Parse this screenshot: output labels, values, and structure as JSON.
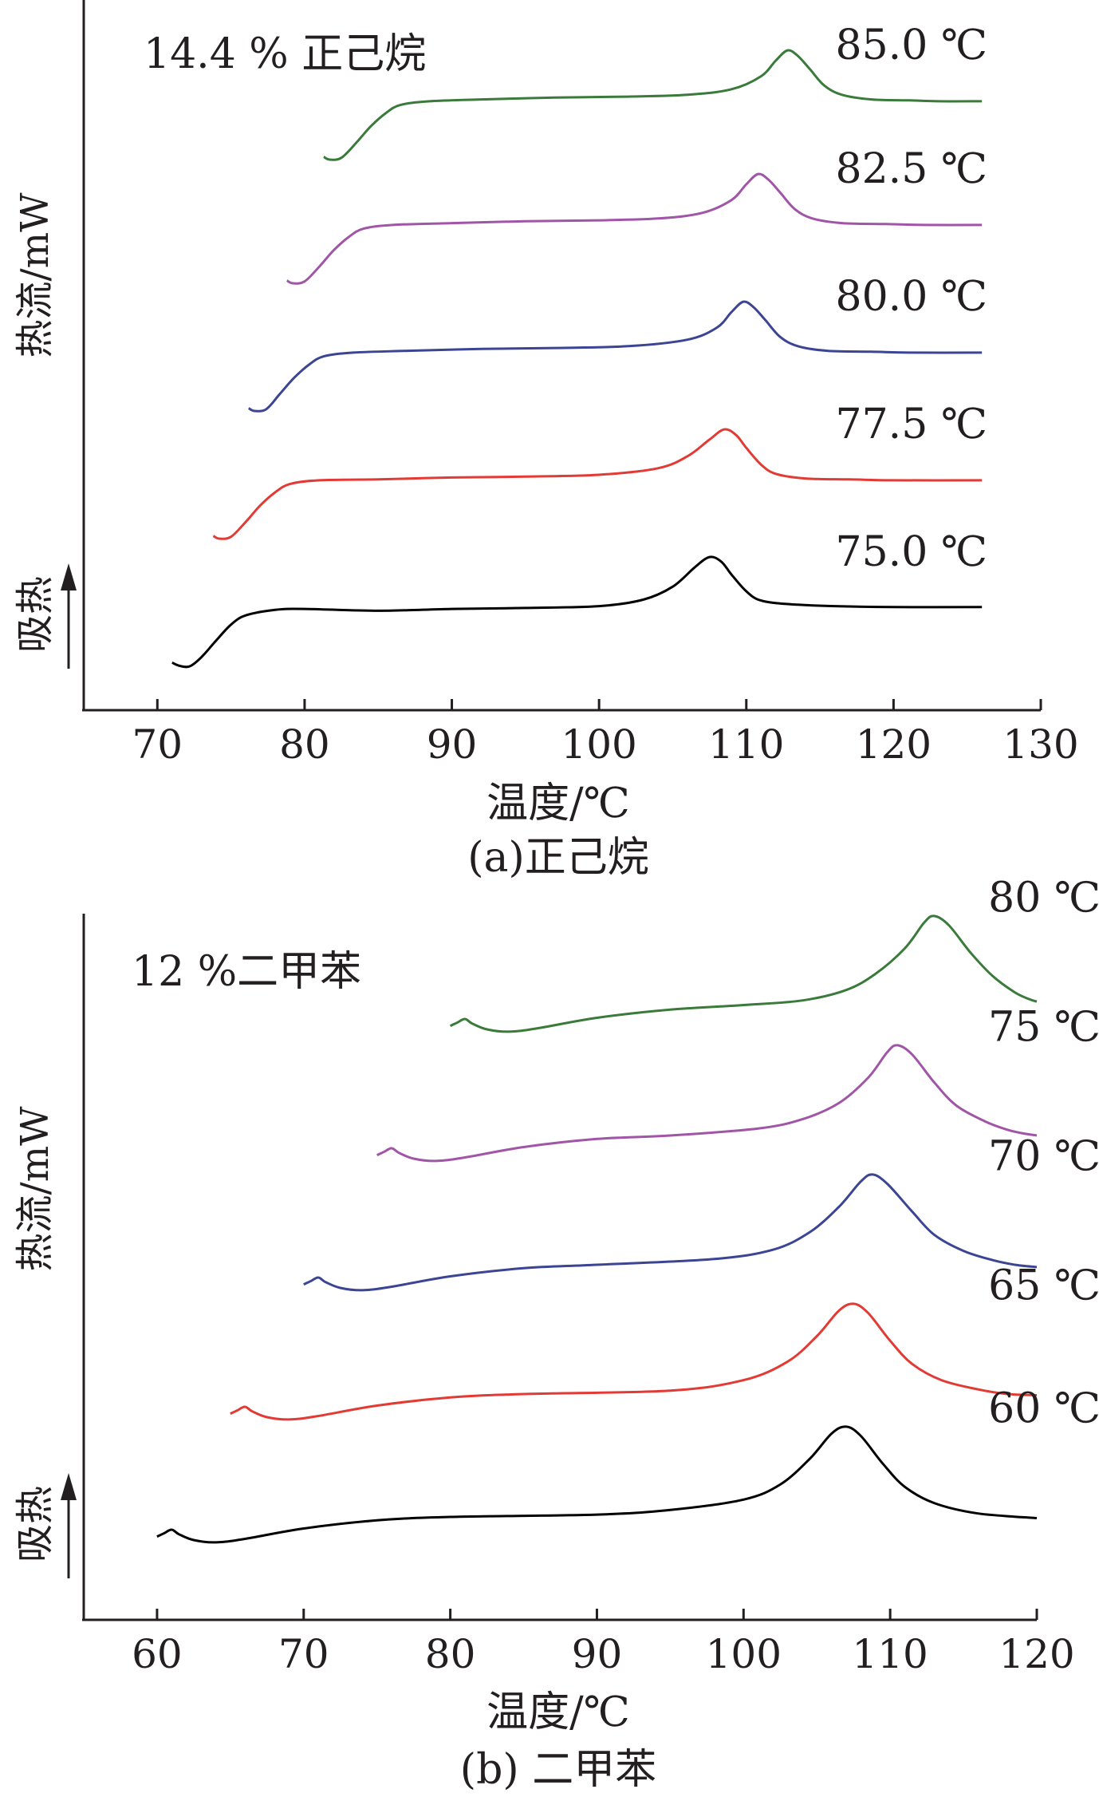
{
  "chart_data": [
    {
      "type": "line",
      "panel": "a",
      "caption": "(a)正己烷",
      "annotation": "14.4 % 正己烷",
      "xlabel": "温度/℃",
      "ylabel": "热流/mW",
      "y_direction_label": "吸热",
      "xlim": [
        65,
        130
      ],
      "xticks": [
        "70",
        "80",
        "90",
        "100",
        "110",
        "120",
        "130"
      ],
      "grid": false,
      "series": [
        {
          "name": "75.0 ℃",
          "color": "#000000",
          "x": [
            71.0,
            71.5,
            72.2,
            73.0,
            74.0,
            75.0,
            76.0,
            78.0,
            80.0,
            85.0,
            90.0,
            95.0,
            100.0,
            103.0,
            105.0,
            106.5,
            107.5,
            108.3,
            109.0,
            110.0,
            111.0,
            113.0,
            116.0,
            120.0,
            126.0
          ],
          "y": [
            0.4,
            0.05,
            0.0,
            1.0,
            2.8,
            4.5,
            5.5,
            6.1,
            6.2,
            6.0,
            6.2,
            6.3,
            6.5,
            7.2,
            8.6,
            10.7,
            11.8,
            11.3,
            9.9,
            8.1,
            7.1,
            6.7,
            6.5,
            6.4,
            6.4
          ]
        },
        {
          "name": "77.5 ℃",
          "color": "#e23a34",
          "x": [
            73.8,
            74.2,
            75.0,
            76.0,
            77.0,
            78.0,
            79.0,
            81.0,
            85.0,
            90.0,
            95.0,
            100.0,
            104.0,
            106.0,
            107.5,
            108.5,
            109.3,
            110.0,
            111.0,
            112.0,
            114.0,
            117.0,
            120.0,
            126.0
          ],
          "y": [
            0.3,
            0.0,
            0.2,
            1.8,
            3.6,
            5.0,
            5.9,
            6.3,
            6.4,
            6.6,
            6.7,
            6.9,
            7.6,
            8.9,
            10.7,
            11.8,
            11.2,
            9.8,
            8.0,
            7.0,
            6.5,
            6.4,
            6.3,
            6.3
          ]
        },
        {
          "name": "80.0 ℃",
          "color": "#3b4593",
          "x": [
            76.2,
            76.6,
            77.4,
            78.3,
            79.3,
            80.3,
            81.3,
            83.3,
            87.0,
            92.0,
            97.0,
            102.0,
            106.0,
            108.0,
            109.0,
            109.8,
            110.5,
            111.3,
            112.3,
            113.5,
            115.5,
            118.5,
            121.0,
            126.0
          ],
          "y": [
            0.3,
            0.0,
            0.2,
            1.8,
            3.6,
            5.0,
            5.9,
            6.3,
            6.5,
            6.7,
            6.8,
            7.0,
            7.7,
            9.0,
            10.7,
            11.8,
            11.2,
            9.8,
            8.0,
            7.0,
            6.5,
            6.4,
            6.3,
            6.3
          ]
        },
        {
          "name": "82.5 ℃",
          "color": "#a055a6",
          "x": [
            78.8,
            79.2,
            80.0,
            81.0,
            82.0,
            83.0,
            84.0,
            86.0,
            90.0,
            95.0,
            100.0,
            104.0,
            107.0,
            109.0,
            110.0,
            110.8,
            111.5,
            112.3,
            113.3,
            114.5,
            116.5,
            119.5,
            122.0,
            126.0
          ],
          "y": [
            0.3,
            0.0,
            0.2,
            1.8,
            3.6,
            5.0,
            5.9,
            6.3,
            6.5,
            6.7,
            6.8,
            7.0,
            7.6,
            9.0,
            10.7,
            11.8,
            11.2,
            9.8,
            8.0,
            7.0,
            6.5,
            6.4,
            6.3,
            6.3
          ]
        },
        {
          "name": "85.0 ℃",
          "color": "#3a7a3a",
          "x": [
            81.3,
            81.7,
            82.5,
            83.5,
            84.5,
            85.5,
            86.5,
            88.5,
            92.0,
            97.0,
            102.0,
            106.0,
            109.0,
            111.0,
            112.0,
            112.8,
            113.5,
            114.3,
            115.3,
            116.5,
            118.5,
            121.0,
            123.0,
            126.0
          ],
          "y": [
            0.3,
            0.0,
            0.2,
            1.8,
            3.6,
            5.0,
            5.9,
            6.3,
            6.5,
            6.7,
            6.8,
            7.0,
            7.6,
            9.0,
            10.7,
            11.8,
            11.2,
            9.8,
            8.0,
            7.0,
            6.5,
            6.4,
            6.3,
            6.3
          ]
        }
      ]
    },
    {
      "type": "line",
      "panel": "b",
      "caption": "(b) 二甲苯",
      "annotation": "12 %二甲苯",
      "xlabel": "温度/℃",
      "ylabel": "热流/mW",
      "y_direction_label": "吸热",
      "xlim": [
        55,
        120
      ],
      "xticks": [
        "60",
        "70",
        "80",
        "90",
        "100",
        "110",
        "120"
      ],
      "grid": false,
      "series": [
        {
          "name": "60 ℃",
          "color": "#000000",
          "x": [
            60.0,
            60.5,
            61.0,
            61.5,
            62.5,
            64.0,
            66.0,
            70.0,
            75.0,
            80.0,
            90.0,
            95.0,
            100.0,
            102.5,
            104.5,
            106.0,
            107.0,
            108.0,
            109.5,
            111.0,
            113.0,
            116.0,
            120.0
          ],
          "y": [
            0.3,
            0.6,
            0.9,
            0.5,
            0.0,
            -0.2,
            0.1,
            1.0,
            1.7,
            2.0,
            2.2,
            2.6,
            3.5,
            4.8,
            7.0,
            9.2,
            9.8,
            9.0,
            6.6,
            4.6,
            3.2,
            2.3,
            1.9
          ]
        },
        {
          "name": "65 ℃",
          "color": "#e23a34",
          "x": [
            65.0,
            65.5,
            66.0,
            66.5,
            67.5,
            69.0,
            71.0,
            75.0,
            80.0,
            85.0,
            95.0,
            100.0,
            103.0,
            105.0,
            106.5,
            107.5,
            108.5,
            110.0,
            111.5,
            113.5,
            116.0,
            118.0,
            120.0
          ],
          "y": [
            0.3,
            0.6,
            0.9,
            0.5,
            0.0,
            -0.2,
            0.1,
            1.0,
            1.7,
            2.0,
            2.3,
            3.2,
            4.8,
            7.0,
            9.2,
            9.8,
            9.0,
            6.6,
            4.6,
            3.2,
            2.4,
            2.0,
            1.9
          ]
        },
        {
          "name": "70 ℃",
          "color": "#3b4593",
          "x": [
            70.0,
            70.5,
            71.0,
            71.5,
            72.5,
            74.0,
            76.0,
            80.0,
            85.0,
            90.0,
            98.0,
            102.0,
            104.5,
            106.5,
            108.0,
            108.8,
            109.8,
            111.5,
            113.0,
            115.0,
            117.0,
            118.5,
            120.0
          ],
          "y": [
            0.3,
            0.6,
            0.9,
            0.5,
            0.0,
            -0.2,
            0.1,
            1.0,
            1.7,
            2.0,
            2.5,
            3.3,
            4.8,
            7.0,
            9.2,
            9.8,
            9.0,
            6.6,
            4.6,
            3.2,
            2.4,
            2.0,
            1.8
          ]
        },
        {
          "name": "75 ℃",
          "color": "#a055a6",
          "x": [
            75.0,
            75.5,
            76.0,
            76.5,
            77.5,
            79.0,
            81.0,
            85.0,
            90.0,
            95.0,
            101.0,
            104.0,
            106.5,
            108.5,
            109.8,
            110.5,
            111.5,
            113.0,
            114.5,
            116.5,
            118.0,
            119.0,
            120.0
          ],
          "y": [
            0.3,
            0.6,
            0.9,
            0.5,
            0.0,
            -0.2,
            0.1,
            1.0,
            1.7,
            2.0,
            2.6,
            3.4,
            4.8,
            7.0,
            9.2,
            9.8,
            9.0,
            6.6,
            4.6,
            3.2,
            2.5,
            2.2,
            2.0
          ]
        },
        {
          "name": "80 ℃",
          "color": "#3a7a3a",
          "x": [
            80.0,
            80.5,
            81.0,
            81.5,
            82.5,
            84.0,
            86.0,
            90.0,
            95.0,
            100.0,
            104.0,
            107.0,
            109.0,
            111.0,
            112.3,
            113.0,
            114.0,
            115.5,
            117.0,
            118.5,
            119.5,
            120.0
          ],
          "y": [
            0.3,
            0.6,
            0.9,
            0.5,
            0.0,
            -0.2,
            0.1,
            1.0,
            1.7,
            2.1,
            2.5,
            3.4,
            4.8,
            7.0,
            9.2,
            9.8,
            9.0,
            6.6,
            4.6,
            3.2,
            2.6,
            2.4
          ]
        }
      ]
    }
  ]
}
